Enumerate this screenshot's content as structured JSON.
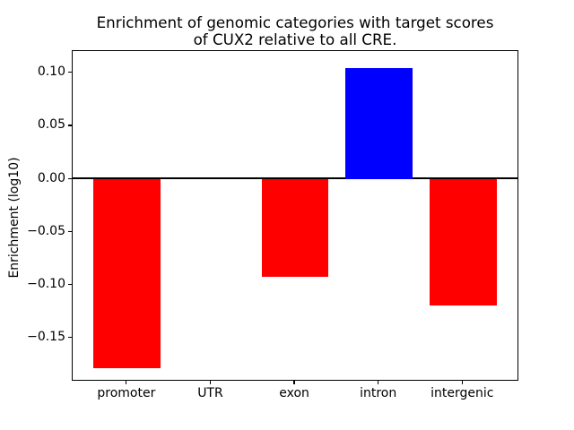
{
  "figure": {
    "background": "#ffffff",
    "plot_background": "#ffffff",
    "spine_color": "#000000"
  },
  "chart_data": {
    "type": "bar",
    "title": "Enrichment of genomic categories with target scores\nof CUX2 relative to all CRE.",
    "title_lines": [
      "Enrichment of genomic categories with target scores",
      "of CUX2 relative to all CRE."
    ],
    "xlabel": "",
    "ylabel": "Enrichment (log10)",
    "categories": [
      "promoter",
      "UTR",
      "exon",
      "intron",
      "intergenic"
    ],
    "values": [
      -0.178,
      0.0,
      -0.092,
      0.105,
      -0.119
    ],
    "bar_colors": [
      "#ff0000",
      "#ff0000",
      "#ff0000",
      "#0000ff",
      "#ff0000"
    ],
    "bar_width": 0.8,
    "xlim": [
      -0.65,
      4.67
    ],
    "ylim": [
      -0.191,
      0.121
    ],
    "yticks": [
      {
        "value": 0.1,
        "label": "0.10"
      },
      {
        "value": 0.05,
        "label": "0.05"
      },
      {
        "value": 0.0,
        "label": "0.00"
      },
      {
        "value": -0.05,
        "label": "−0.05"
      },
      {
        "value": -0.1,
        "label": "−0.10"
      },
      {
        "value": -0.15,
        "label": "−0.15"
      }
    ],
    "zero_line": {
      "show": true,
      "color": "#000000"
    },
    "grid": false,
    "legend": null
  }
}
